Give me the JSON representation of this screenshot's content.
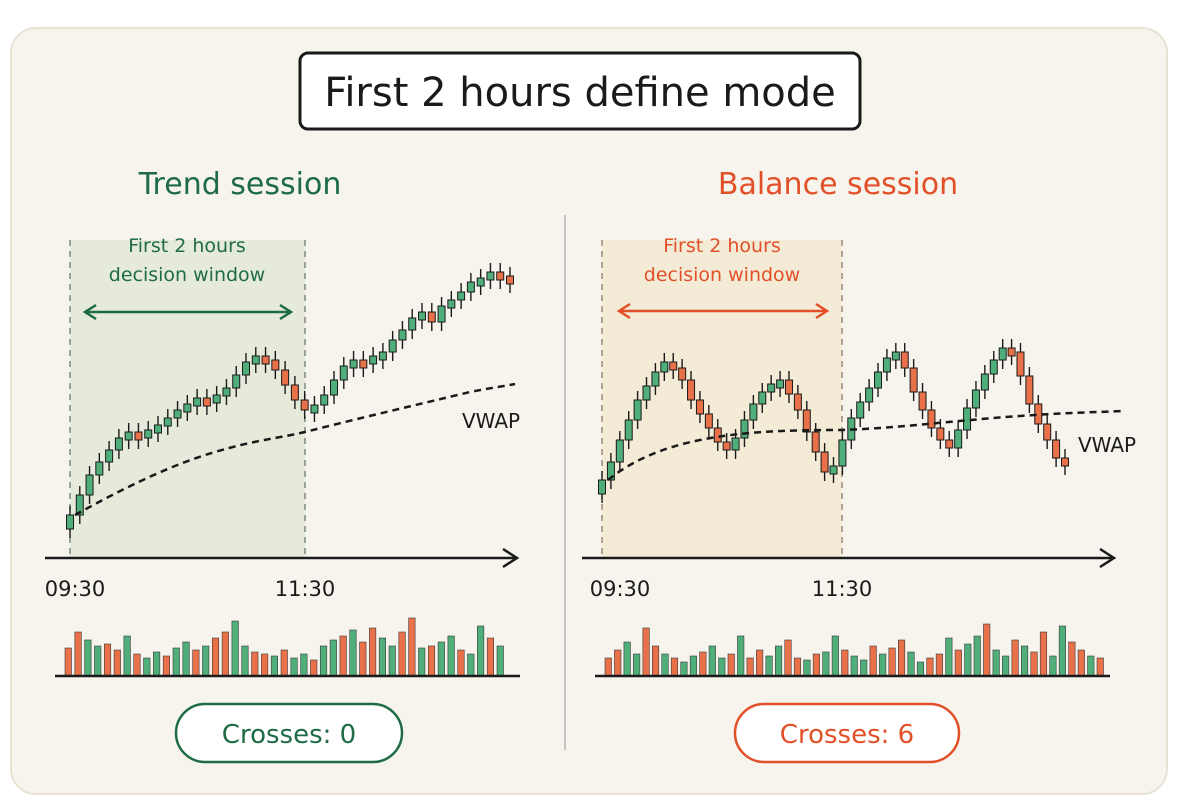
{
  "title": "First 2 hours define mode",
  "colors": {
    "green": "#1e6b45",
    "red": "#e2502a",
    "up": "#4fae7a",
    "down": "#e8714a",
    "ink": "#1a1a1a",
    "shade_left": "#e6eadb",
    "shade_right": "#f3ebd6"
  },
  "panels": [
    {
      "heading": "Trend session",
      "window_label": [
        "First 2 hours",
        "decision window"
      ],
      "start_time": "09:30",
      "end_time": "11:30",
      "vwap_label": "VWAP",
      "crosses": "Crosses: 0"
    },
    {
      "heading": "Balance session",
      "window_label": [
        "First 2 hours",
        "decision window"
      ],
      "start_time": "09:30",
      "end_time": "11:30",
      "vwap_label": "VWAP",
      "crosses": "Crosses: 6"
    }
  ]
}
